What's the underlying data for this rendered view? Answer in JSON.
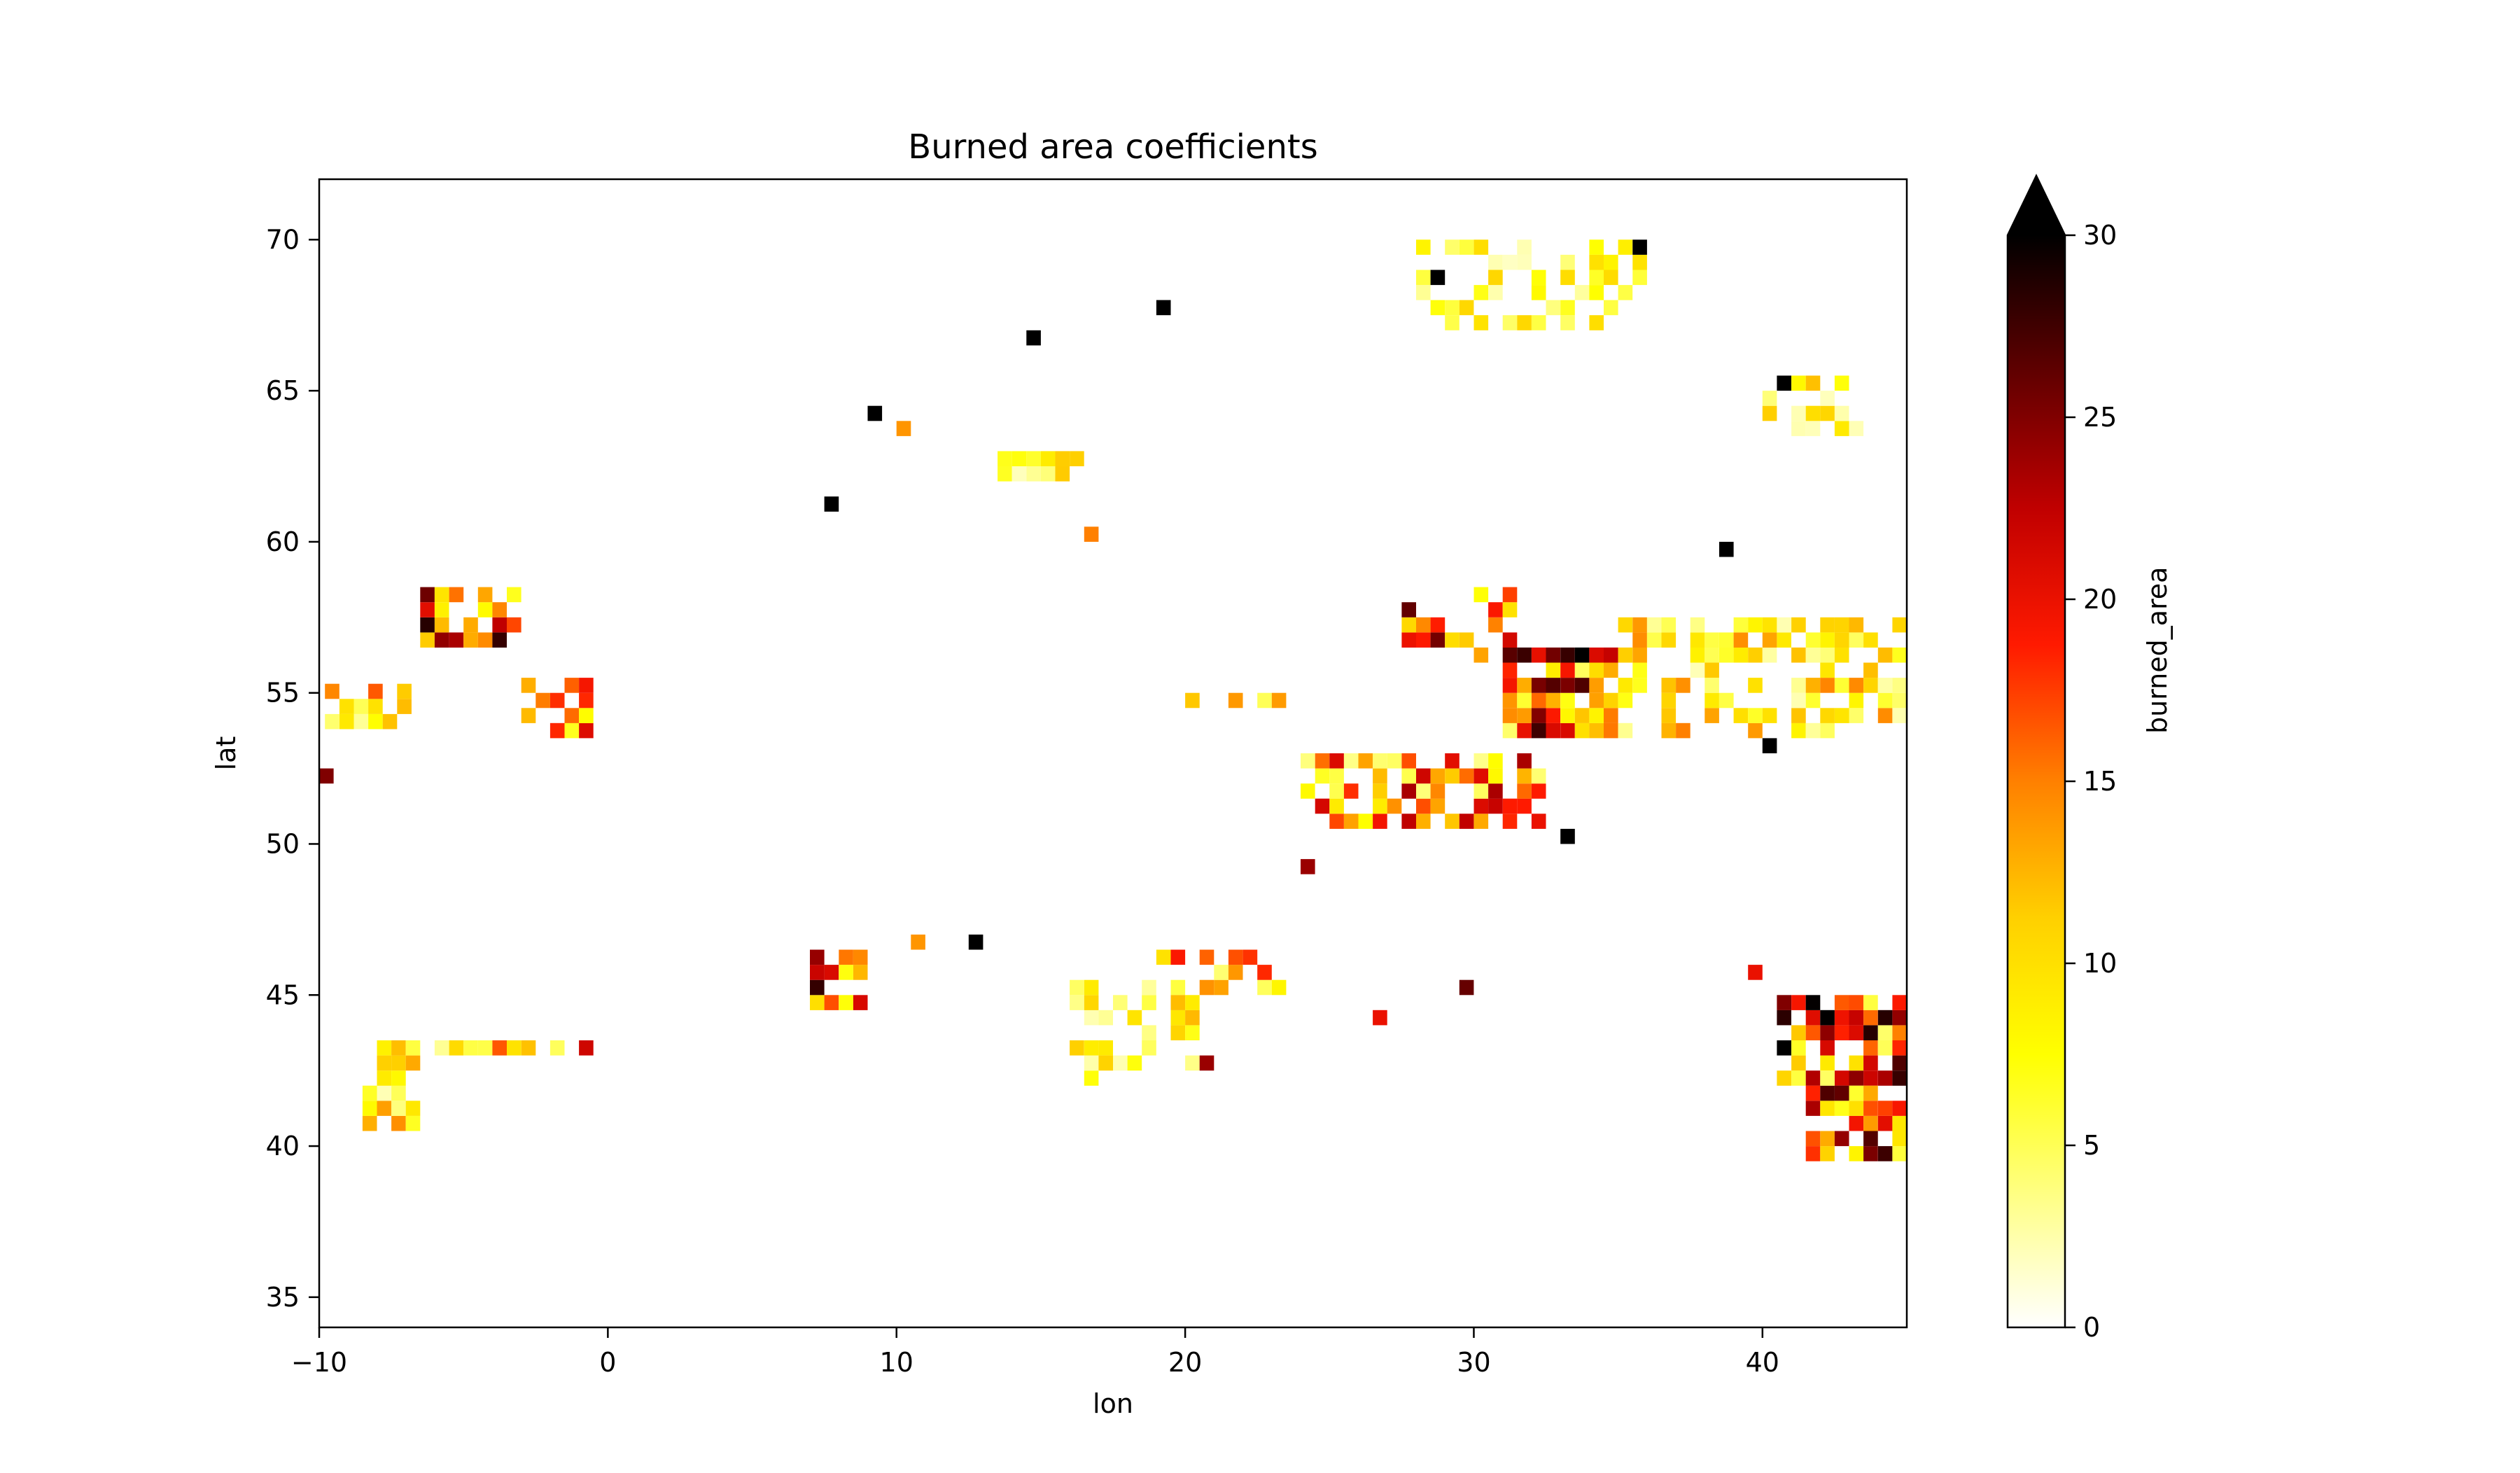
{
  "chart_data": {
    "type": "heatmap",
    "title": "Burned area coefficients",
    "xlabel": "lon",
    "ylabel": "lat",
    "xlim": [
      -10,
      45
    ],
    "ylim": [
      34,
      72
    ],
    "xticks": [
      -10,
      0,
      10,
      20,
      30,
      40
    ],
    "xtick_labels": [
      "−10",
      "0",
      "10",
      "20",
      "30",
      "40"
    ],
    "yticks": [
      35,
      40,
      45,
      50,
      55,
      60,
      65,
      70
    ],
    "ytick_labels": [
      "35",
      "40",
      "45",
      "50",
      "55",
      "60",
      "65",
      "70"
    ],
    "colorbar": {
      "label": "burned_area",
      "min": 0,
      "max": 30,
      "ticks": [
        0,
        5,
        10,
        15,
        20,
        25,
        30
      ],
      "tick_labels": [
        "0",
        "5",
        "10",
        "15",
        "20",
        "25",
        "30"
      ],
      "extend": "max",
      "colormap": "hot_r",
      "colormap_stops": [
        "#ffffff",
        "#ffff80",
        "#ffff00",
        "#ffd000",
        "#ff8000",
        "#ff1a00",
        "#c00000",
        "#600000",
        "#000000"
      ]
    },
    "grid": false,
    "cell_size_deg": 0.5,
    "clusters": [
      {
        "lon": [
          -6.5,
          -3.5
        ],
        "lat": [
          56.5,
          58.3
        ],
        "value": 26,
        "density": 0.8
      },
      {
        "lon": [
          -9.8,
          -7.0
        ],
        "lat": [
          53.8,
          55.2
        ],
        "value": 18,
        "density": 0.6
      },
      {
        "lon": [
          -3.0,
          -1.0
        ],
        "lat": [
          53.5,
          55.0
        ],
        "value": 20,
        "density": 0.6
      },
      {
        "lon": [
          -8.5,
          -7.0
        ],
        "lat": [
          40.5,
          43.0
        ],
        "value": 14,
        "density": 0.7
      },
      {
        "lon": [
          -7.5,
          -1.0
        ],
        "lat": [
          43.0,
          43.4
        ],
        "value": 20,
        "density": 0.8
      },
      {
        "lon": [
          7.0,
          8.5
        ],
        "lat": [
          44.5,
          46.0
        ],
        "value": 26,
        "density": 0.6
      },
      {
        "lon": [
          20.0,
          23.0
        ],
        "lat": [
          54.5,
          54.9
        ],
        "value": 26,
        "density": 0.8
      },
      {
        "lon": [
          19.0,
          23.0
        ],
        "lat": [
          45.0,
          46.0
        ],
        "value": 18,
        "density": 0.6
      },
      {
        "lon": [
          16.0,
          20.0
        ],
        "lat": [
          42.0,
          45.0
        ],
        "value": 12,
        "density": 0.5
      },
      {
        "lon": [
          24.0,
          32.0
        ],
        "lat": [
          50.5,
          52.8
        ],
        "value": 22,
        "density": 0.6
      },
      {
        "lon": [
          31.0,
          34.5
        ],
        "lat": [
          53.5,
          56.0
        ],
        "value": 28,
        "density": 0.9
      },
      {
        "lon": [
          27.5,
          31.0
        ],
        "lat": [
          56.0,
          58.0
        ],
        "value": 24,
        "density": 0.6
      },
      {
        "lon": [
          35.0,
          45.0
        ],
        "lat": [
          53.5,
          57.0
        ],
        "value": 14,
        "density": 0.5
      },
      {
        "lon": [
          40.5,
          45.0
        ],
        "lat": [
          42.0,
          44.5
        ],
        "value": 28,
        "density": 0.8
      },
      {
        "lon": [
          41.5,
          45.0
        ],
        "lat": [
          39.5,
          42.0
        ],
        "value": 26,
        "density": 0.7
      },
      {
        "lon": [
          28.0,
          35.5
        ],
        "lat": [
          67.0,
          69.5
        ],
        "value": 10,
        "density": 0.4
      },
      {
        "lon": [
          40.0,
          43.0
        ],
        "lat": [
          63.5,
          65.0
        ],
        "value": 12,
        "density": 0.4
      },
      {
        "lon": [
          13.5,
          16.0
        ],
        "lat": [
          62.0,
          62.5
        ],
        "value": 12,
        "density": 0.7
      }
    ],
    "isolated_points": [
      {
        "lon": 18.8,
        "lat": 67.3,
        "value": 30
      },
      {
        "lon": 14.3,
        "lat": 66.3,
        "value": 30
      },
      {
        "lon": 8.8,
        "lat": 63.8,
        "value": 30
      },
      {
        "lon": 9.8,
        "lat": 63.3,
        "value": 14
      },
      {
        "lon": 7.3,
        "lat": 60.8,
        "value": 30
      },
      {
        "lon": 16.3,
        "lat": 59.8,
        "value": 15
      },
      {
        "lon": 12.3,
        "lat": 46.3,
        "value": 30
      },
      {
        "lon": 10.3,
        "lat": 46.3,
        "value": 14
      },
      {
        "lon": 35.3,
        "lat": 69.3,
        "value": 30
      },
      {
        "lon": 28.3,
        "lat": 68.3,
        "value": 30
      },
      {
        "lon": 40.3,
        "lat": 64.8,
        "value": 30
      },
      {
        "lon": 38.3,
        "lat": 59.3,
        "value": 30
      },
      {
        "lon": 39.8,
        "lat": 52.8,
        "value": 30
      },
      {
        "lon": 29.3,
        "lat": 44.8,
        "value": 26
      },
      {
        "lon": 26.3,
        "lat": 43.8,
        "value": 20
      },
      {
        "lon": 20.3,
        "lat": 42.3,
        "value": 24
      },
      {
        "lon": 39.3,
        "lat": 45.3,
        "value": 20
      },
      {
        "lon": -10.0,
        "lat": 52.0,
        "value": 25
      },
      {
        "lon": 32.8,
        "lat": 49.8,
        "value": 30
      },
      {
        "lon": 23.8,
        "lat": 48.8,
        "value": 24
      }
    ]
  }
}
